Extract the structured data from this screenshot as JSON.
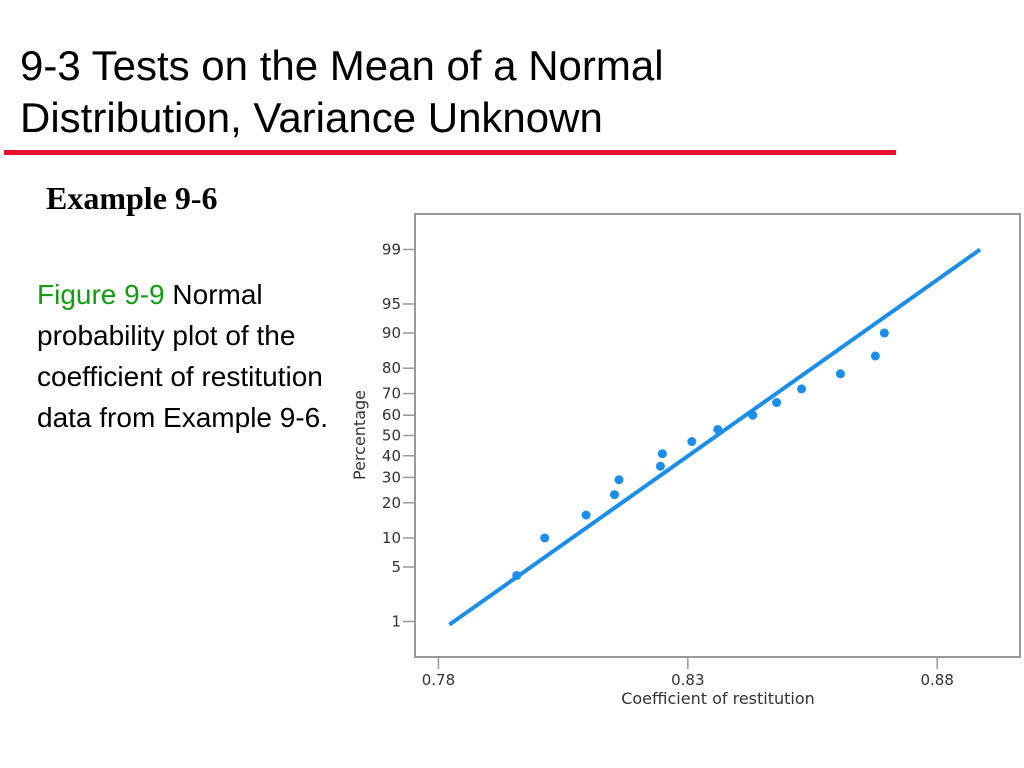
{
  "slide": {
    "title_line1": "9-3 Tests on the Mean of a Normal",
    "title_line2": "Distribution, Variance Unknown",
    "example_heading": "Example 9-6",
    "caption_label": "Figure 9-9",
    "caption_text": " Normal probability plot of the coefficient of restitution data from Example 9-6."
  },
  "colors": {
    "title_rule": "#e8102c",
    "caption_label": "#119c11",
    "series": "#1a8ee8",
    "frame": "#999999"
  },
  "chart_data": {
    "type": "scatter",
    "title": "",
    "xlabel": "Coefficient of restitution",
    "ylabel": "Percentage",
    "y_scale": "normal probability",
    "xlim": [
      0.7753,
      0.8966
    ],
    "ylim": [
      0.28,
      99.72
    ],
    "x_ticks": [
      0.78,
      0.83,
      0.88
    ],
    "x_tick_labels": [
      "0.78",
      "0.83",
      "0.88"
    ],
    "y_ticks": [
      1,
      5,
      10,
      20,
      30,
      40,
      50,
      60,
      70,
      80,
      90,
      95,
      99
    ],
    "y_tick_labels": [
      "1",
      "5",
      "10",
      "20",
      "30",
      "40",
      "50",
      "60",
      "70",
      "80",
      "90",
      "95",
      "99"
    ],
    "grid": false,
    "series": [
      {
        "points": [
          {
            "x": 0.7957,
            "y": 4
          },
          {
            "x": 0.8013,
            "y": 10
          },
          {
            "x": 0.8096,
            "y": 16
          },
          {
            "x": 0.8153,
            "y": 23
          },
          {
            "x": 0.8162,
            "y": 29
          },
          {
            "x": 0.8245,
            "y": 35
          },
          {
            "x": 0.8249,
            "y": 41
          },
          {
            "x": 0.8308,
            "y": 47
          },
          {
            "x": 0.836,
            "y": 53
          },
          {
            "x": 0.843,
            "y": 60
          },
          {
            "x": 0.8478,
            "y": 66
          },
          {
            "x": 0.8528,
            "y": 72
          },
          {
            "x": 0.8606,
            "y": 78
          },
          {
            "x": 0.8676,
            "y": 84
          },
          {
            "x": 0.8694,
            "y": 90
          }
        ],
        "fit_line": [
          {
            "x": 0.7822,
            "y": 0.9
          },
          {
            "x": 0.8886,
            "y": 99
          }
        ]
      }
    ]
  }
}
